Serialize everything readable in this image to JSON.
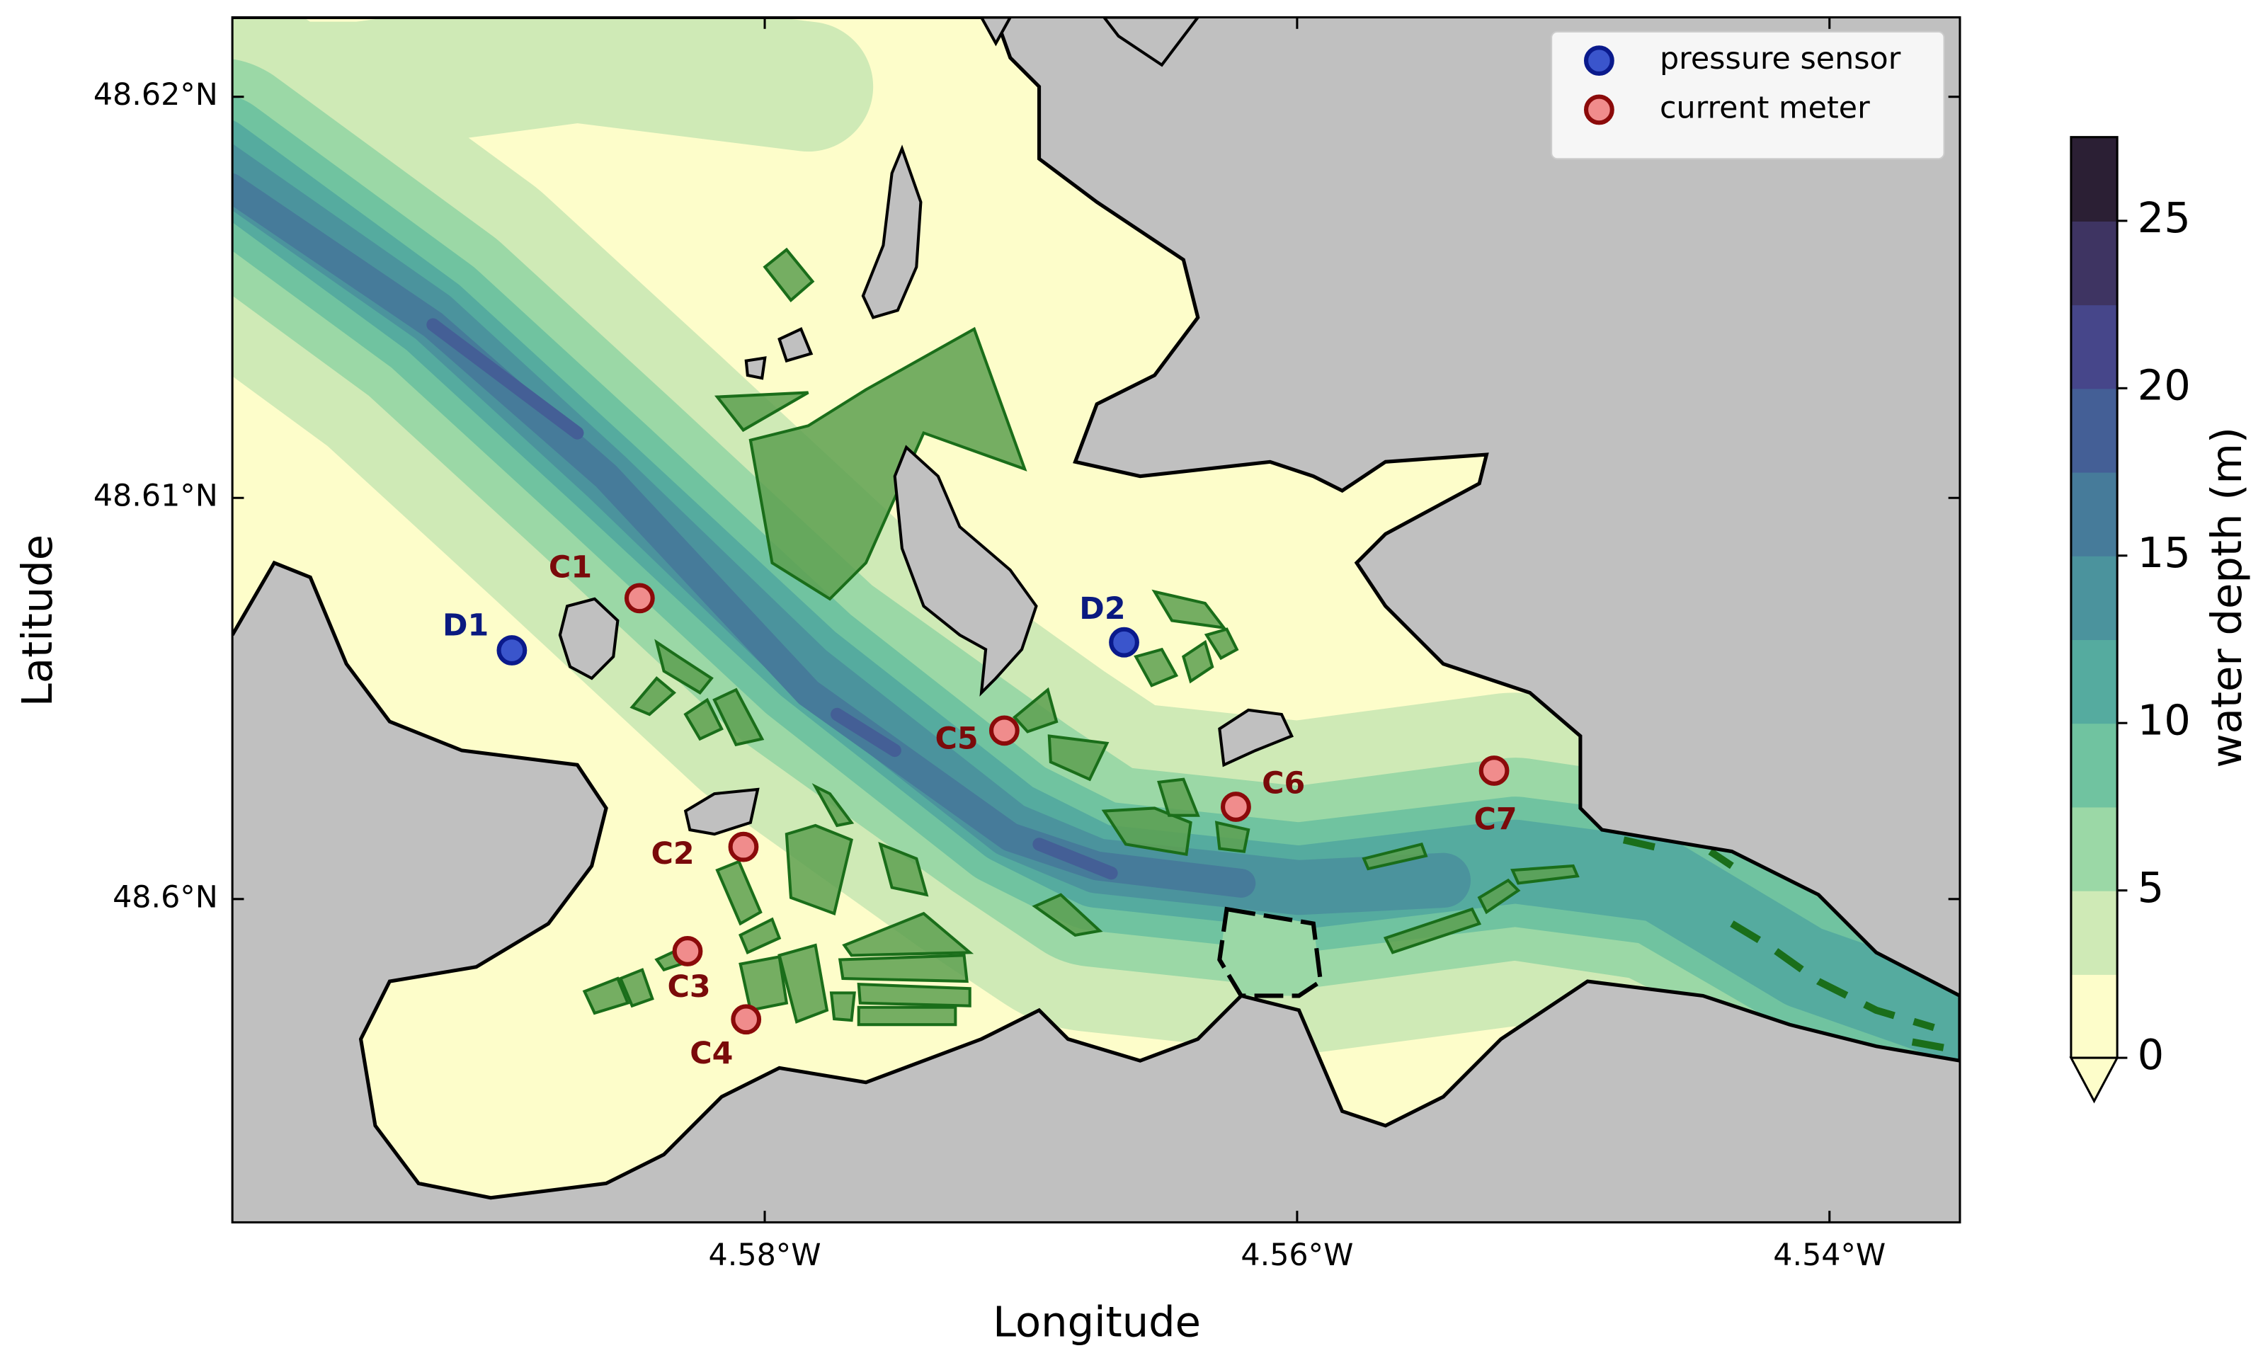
{
  "chart_data": {
    "type": "scatter",
    "x_label": "Longitude",
    "y_label": "Latitude",
    "xlim": [
      -4.6,
      -4.5351
    ],
    "ylim": [
      48.59194,
      48.62198
    ],
    "xticks": [
      {
        "value": -4.58,
        "label": "4.58°W"
      },
      {
        "value": -4.56,
        "label": "4.56°W"
      },
      {
        "value": -4.54,
        "label": "4.54°W"
      }
    ],
    "yticks": [
      {
        "value": 48.6,
        "label": "48.6°N"
      },
      {
        "value": 48.61,
        "label": "48.61°N"
      },
      {
        "value": 48.62,
        "label": "48.62°N"
      }
    ],
    "legend": "upper right",
    "series": [
      {
        "name": "pressure sensor",
        "color": "#3a55cc",
        "edgecolor": "#0a1a8c",
        "label_color": "#0a1a80",
        "labels": [
          "D1",
          "D2"
        ],
        "x": [
          -4.5895,
          -4.5665
        ],
        "values": [
          48.6062,
          48.6064
        ]
      },
      {
        "name": "current meter",
        "color": "#f08c8c",
        "edgecolor": "#8b0a0a",
        "label_color": "#7a0a0a",
        "labels": [
          "C1",
          "C2",
          "C3",
          "C4",
          "C5",
          "C6",
          "C7"
        ],
        "x": [
          -4.5847,
          -4.5808,
          -4.5829,
          -4.5807,
          -4.571,
          -4.5623,
          -4.5526
        ],
        "values": [
          48.6075,
          48.6013,
          48.5987,
          48.597,
          48.6042,
          48.6023,
          48.6032
        ]
      }
    ],
    "colorbar": {
      "label": "water depth (m)",
      "levels": [
        0,
        2.5,
        5,
        7.5,
        10,
        12.5,
        15,
        17.5,
        20,
        22.5,
        25,
        27.5
      ],
      "colors": [
        "#fdfdca",
        "#cfeab6",
        "#9bd8a6",
        "#70c3a0",
        "#55ab9f",
        "#4b939d",
        "#467b9a",
        "#445f96",
        "#46468a",
        "#3e3462",
        "#2b1f34"
      ],
      "ticks": [
        0,
        5,
        10,
        15,
        20,
        25
      ],
      "extend": "min"
    }
  }
}
